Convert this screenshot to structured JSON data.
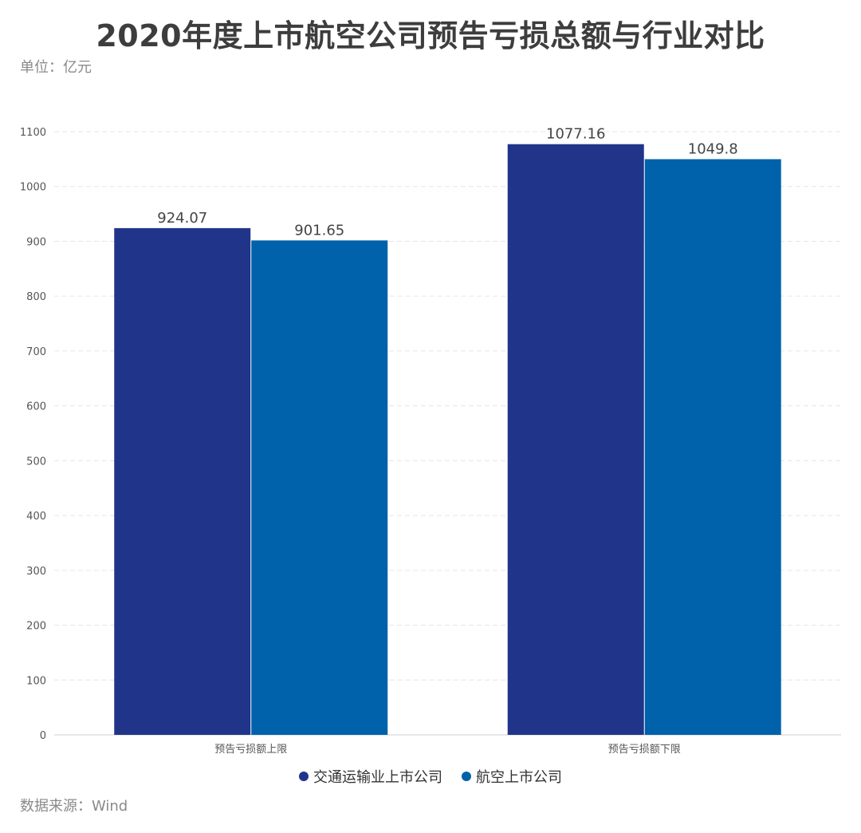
{
  "header": {
    "title": "2020年度上市航空公司预告亏损总额与行业对比",
    "unit": "单位：亿元"
  },
  "footer": {
    "source": "数据来源：Wind"
  },
  "colors": {
    "series_0": "#203589",
    "series_1": "#0062ab",
    "grid": "#e6e6e6",
    "axis": "#cccccc",
    "tick_text": "#555555",
    "label_text": "#444444"
  },
  "chart_data": {
    "type": "bar",
    "categories": [
      "预告亏损额上限",
      "预告亏损额下限"
    ],
    "series": [
      {
        "name": "交通运输业上市公司",
        "values": [
          924.07,
          1077.16
        ],
        "labels": [
          "924.07",
          "1077.16"
        ]
      },
      {
        "name": "航空上市公司",
        "values": [
          901.65,
          1049.8
        ],
        "labels": [
          "901.65",
          "1049.8"
        ]
      }
    ],
    "title": "2020年度上市航空公司预告亏损总额与行业对比",
    "ylim": [
      0,
      1100
    ],
    "yticks": [
      0,
      100,
      200,
      300,
      400,
      500,
      600,
      700,
      800,
      900,
      1000,
      1100
    ],
    "grid": true,
    "legend": "bottom-center"
  }
}
